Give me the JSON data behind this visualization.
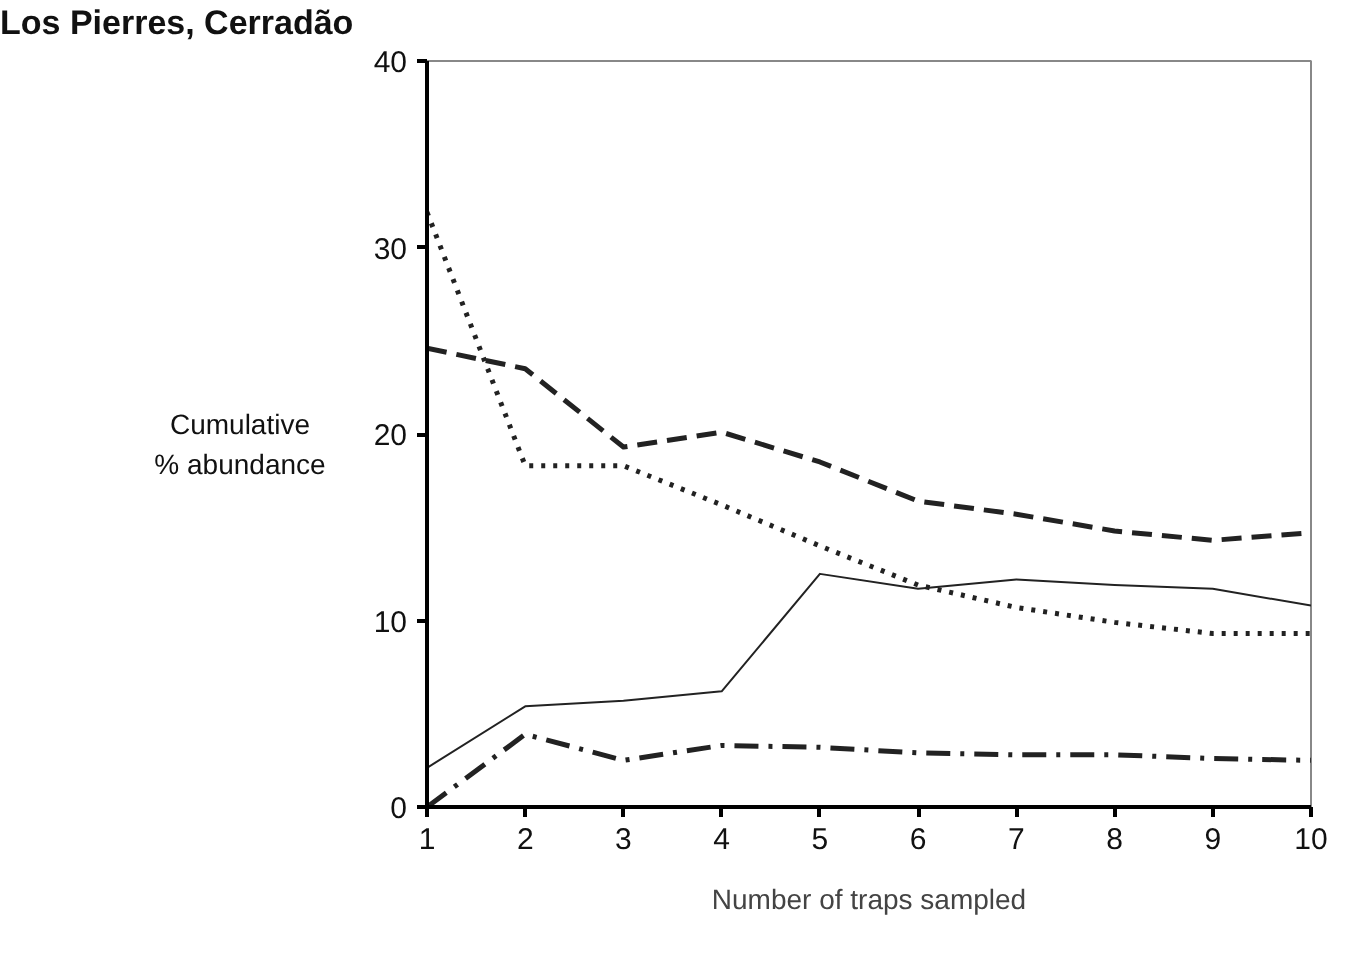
{
  "chart_data": {
    "type": "line",
    "title": "Los Pierres, Cerradão",
    "xlabel": "Number of traps sampled",
    "ylabel": "Cumulative\n% abundance",
    "x": [
      1,
      2,
      3,
      4,
      5,
      6,
      7,
      8,
      9,
      10
    ],
    "xlim": [
      1,
      10
    ],
    "xticks": [
      1,
      2,
      3,
      4,
      5,
      6,
      7,
      8,
      9,
      10
    ],
    "ylim": [
      0,
      40
    ],
    "yticks": [
      0,
      10,
      20,
      30,
      40
    ],
    "grid": false,
    "marker": "none",
    "series": [
      {
        "color": "#222222",
        "line_style": "dashed",
        "values": [
          24.6,
          23.5,
          19.3,
          20.1,
          18.5,
          16.4,
          15.7,
          14.8,
          14.3,
          14.7
        ]
      },
      {
        "color": "#222222",
        "line_style": "dotted",
        "values": [
          31.9,
          18.3,
          18.3,
          16.2,
          14.0,
          11.9,
          10.7,
          9.9,
          9.3,
          9.3
        ]
      },
      {
        "color": "#222222",
        "line_style": "solid",
        "values": [
          2.1,
          5.4,
          5.7,
          6.2,
          12.5,
          11.7,
          12.2,
          11.9,
          11.7,
          10.8
        ]
      },
      {
        "color": "#222222",
        "line_style": "dashdot",
        "values": [
          0,
          3.9,
          2.5,
          3.3,
          3.2,
          2.9,
          2.8,
          2.8,
          2.6,
          2.5
        ]
      }
    ]
  }
}
